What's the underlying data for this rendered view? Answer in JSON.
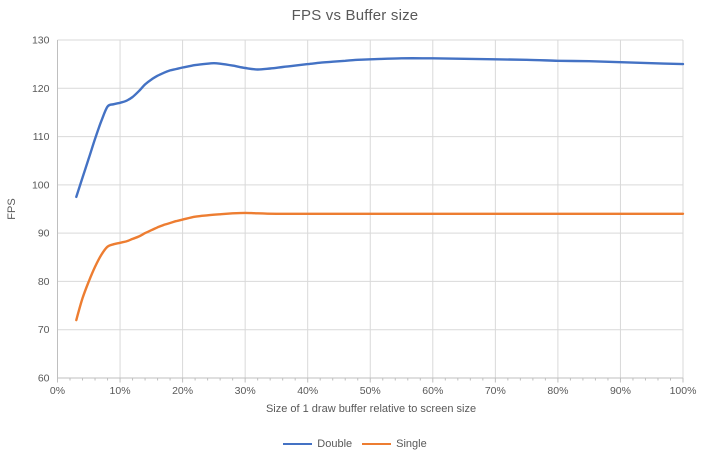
{
  "window": {
    "background_color": "#ffffff"
  },
  "chart_data": {
    "type": "line",
    "title": "FPS vs Buffer size",
    "xlabel": "Size of 1 draw buffer relative to screen size",
    "ylabel": "FPS",
    "xlim_percent": [
      0,
      100
    ],
    "ylim": [
      60,
      130
    ],
    "x_ticks": [
      "0%",
      "10%",
      "20%",
      "30%",
      "40%",
      "50%",
      "60%",
      "70%",
      "80%",
      "90%",
      "100%"
    ],
    "x_major_tick_step_percent": 10,
    "x_minor_tick_step_percent": 2,
    "y_ticks": [
      "60",
      "70",
      "80",
      "90",
      "100",
      "110",
      "120",
      "130"
    ],
    "grid": "both",
    "gridline_color": "#d9d9d9",
    "axis_line_color": "#bfbfbf",
    "text_color": "#595959",
    "legend_position": "bottom-center",
    "series": [
      {
        "name": "Double",
        "color": "#4472c4",
        "points_percent_fps": [
          [
            3,
            97.5
          ],
          [
            4,
            101.5
          ],
          [
            5,
            105.5
          ],
          [
            6,
            109.5
          ],
          [
            7,
            113.2
          ],
          [
            8,
            116.2
          ],
          [
            9,
            116.7
          ],
          [
            10,
            117
          ],
          [
            11,
            117.4
          ],
          [
            12,
            118.2
          ],
          [
            13,
            119.4
          ],
          [
            14,
            120.8
          ],
          [
            15,
            121.8
          ],
          [
            16,
            122.6
          ],
          [
            17,
            123.2
          ],
          [
            18,
            123.7
          ],
          [
            19,
            124
          ],
          [
            20,
            124.3
          ],
          [
            22,
            124.8
          ],
          [
            24,
            125.1
          ],
          [
            25,
            125.2
          ],
          [
            26,
            125.1
          ],
          [
            28,
            124.7
          ],
          [
            30,
            124.2
          ],
          [
            32,
            123.9
          ],
          [
            34,
            124.1
          ],
          [
            36,
            124.4
          ],
          [
            38,
            124.7
          ],
          [
            40,
            125
          ],
          [
            42,
            125.3
          ],
          [
            44,
            125.5
          ],
          [
            46,
            125.7
          ],
          [
            48,
            125.9
          ],
          [
            50,
            126
          ],
          [
            55,
            126.2
          ],
          [
            60,
            126.2
          ],
          [
            65,
            126.1
          ],
          [
            70,
            126
          ],
          [
            75,
            125.9
          ],
          [
            80,
            125.7
          ],
          [
            85,
            125.6
          ],
          [
            90,
            125.4
          ],
          [
            95,
            125.2
          ],
          [
            100,
            125
          ]
        ]
      },
      {
        "name": "Single",
        "color": "#ed7d31",
        "points_percent_fps": [
          [
            3,
            72
          ],
          [
            4,
            76.5
          ],
          [
            5,
            80
          ],
          [
            6,
            83
          ],
          [
            7,
            85.5
          ],
          [
            8,
            87.2
          ],
          [
            9,
            87.7
          ],
          [
            10,
            88
          ],
          [
            11,
            88.3
          ],
          [
            12,
            88.8
          ],
          [
            13,
            89.3
          ],
          [
            14,
            90
          ],
          [
            15,
            90.6
          ],
          [
            16,
            91.2
          ],
          [
            17,
            91.7
          ],
          [
            18,
            92.1
          ],
          [
            19,
            92.5
          ],
          [
            20,
            92.8
          ],
          [
            22,
            93.4
          ],
          [
            24,
            93.7
          ],
          [
            26,
            93.9
          ],
          [
            28,
            94.1
          ],
          [
            30,
            94.2
          ],
          [
            32,
            94.1
          ],
          [
            35,
            94
          ],
          [
            40,
            94
          ],
          [
            45,
            94
          ],
          [
            50,
            94
          ],
          [
            60,
            94
          ],
          [
            70,
            94
          ],
          [
            80,
            94
          ],
          [
            90,
            94
          ],
          [
            100,
            94
          ]
        ]
      }
    ]
  }
}
